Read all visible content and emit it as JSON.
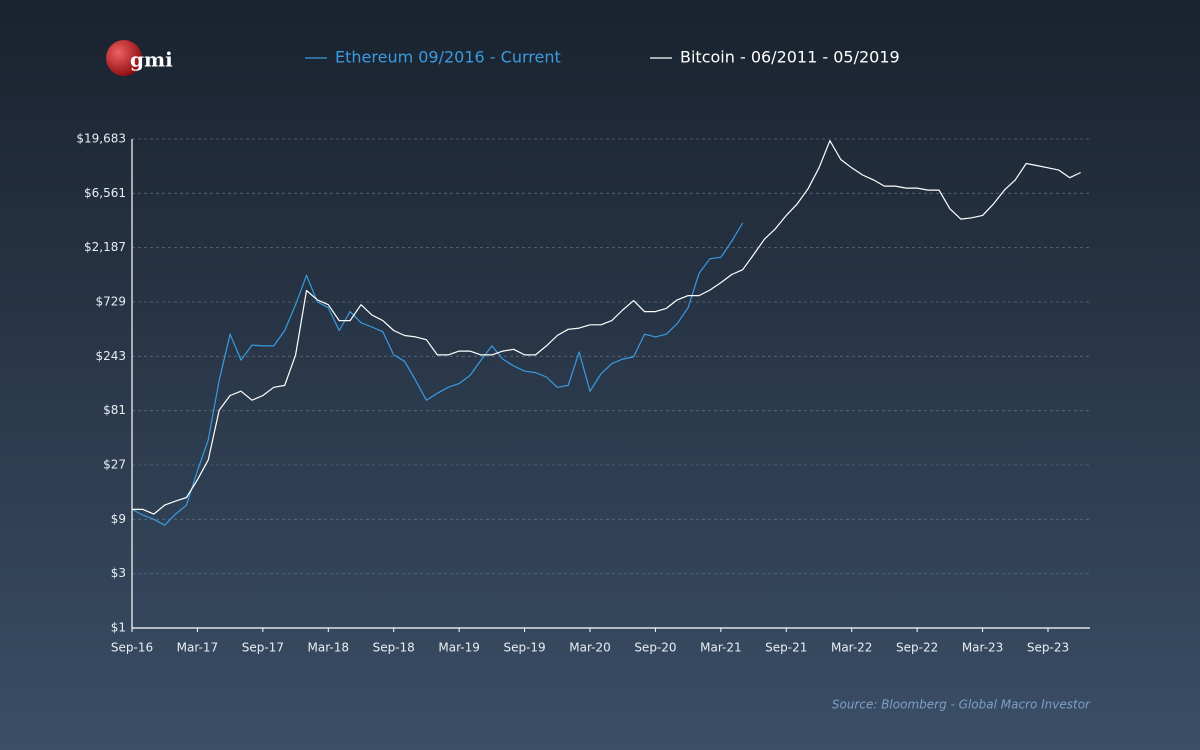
{
  "logo": "gmi",
  "chart_data": {
    "type": "line",
    "source": "Source: Bloomberg - Global Macro Investor",
    "x": [
      "Sep-16",
      "Oct-16",
      "Nov-16",
      "Dec-16",
      "Jan-17",
      "Feb-17",
      "Mar-17",
      "Apr-17",
      "May-17",
      "Jun-17",
      "Jul-17",
      "Aug-17",
      "Sep-17",
      "Oct-17",
      "Nov-17",
      "Dec-17",
      "Jan-18",
      "Feb-18",
      "Mar-18",
      "Apr-18",
      "May-18",
      "Jun-18",
      "Jul-18",
      "Aug-18",
      "Sep-18",
      "Oct-18",
      "Nov-18",
      "Dec-18",
      "Jan-19",
      "Feb-19",
      "Mar-19",
      "Apr-19",
      "May-19",
      "Jun-19",
      "Jul-19",
      "Aug-19",
      "Sep-19",
      "Oct-19",
      "Nov-19",
      "Dec-19",
      "Jan-20",
      "Feb-20",
      "Mar-20",
      "Apr-20",
      "May-20",
      "Jun-20",
      "Jul-20",
      "Aug-20",
      "Sep-20",
      "Oct-20",
      "Nov-20",
      "Dec-20",
      "Jan-21",
      "Feb-21",
      "Mar-21",
      "Apr-21",
      "May-21",
      "Jun-21",
      "Jul-21",
      "Aug-21",
      "Sep-21",
      "Oct-21",
      "Nov-21",
      "Dec-21",
      "Jan-22",
      "Feb-22",
      "Mar-22",
      "Apr-22",
      "May-22",
      "Jun-22",
      "Jul-22",
      "Aug-22",
      "Sep-22",
      "Oct-22",
      "Nov-22",
      "Dec-22",
      "Jan-23",
      "Feb-23",
      "Mar-23",
      "Apr-23",
      "May-23",
      "Jun-23",
      "Jul-23",
      "Aug-23",
      "Sep-23",
      "Oct-23",
      "Nov-23",
      "Dec-23"
    ],
    "xticks": [
      "Sep-16",
      "Mar-17",
      "Sep-17",
      "Mar-18",
      "Sep-18",
      "Mar-19",
      "Sep-19",
      "Mar-20",
      "Sep-20",
      "Mar-21",
      "Sep-21",
      "Mar-22",
      "Sep-22",
      "Mar-23",
      "Sep-23"
    ],
    "series": [
      {
        "name": "Ethereum 09/2016 - Current",
        "color": "#3a9be0",
        "values": [
          11,
          9.8,
          9,
          8,
          10,
          12,
          24,
          45,
          150,
          380,
          225,
          305,
          300,
          300,
          410,
          690,
          1250,
          730,
          650,
          410,
          600,
          480,
          440,
          400,
          250,
          220,
          150,
          100,
          115,
          130,
          140,
          165,
          225,
          300,
          230,
          200,
          180,
          175,
          160,
          130,
          135,
          265,
          120,
          170,
          210,
          230,
          240,
          380,
          360,
          380,
          470,
          650,
          1300,
          1750,
          1800,
          2500,
          3600,
          null,
          null,
          null,
          null,
          null,
          null,
          null,
          null,
          null,
          null,
          null,
          null,
          null,
          null,
          null,
          null,
          null,
          null,
          null,
          null,
          null,
          null,
          null,
          null,
          null,
          null,
          null,
          null,
          null,
          null,
          null
        ]
      },
      {
        "name": "Bitcoin - 06/2011 - 05/2019",
        "color": "#ffffff",
        "values": [
          11,
          11,
          10,
          12,
          13,
          14,
          20,
          30,
          82,
          110,
          120,
          100,
          110,
          130,
          135,
          250,
          920,
          760,
          690,
          500,
          500,
          690,
          560,
          500,
          410,
          370,
          360,
          340,
          250,
          250,
          270,
          270,
          250,
          250,
          270,
          280,
          250,
          250,
          300,
          370,
          420,
          430,
          460,
          460,
          500,
          620,
          750,
          600,
          600,
          640,
          760,
          830,
          830,
          930,
          1080,
          1270,
          1400,
          1900,
          2600,
          3200,
          4200,
          5300,
          7200,
          11000,
          19000,
          13000,
          11000,
          9500,
          8600,
          7600,
          7600,
          7300,
          7300,
          7000,
          7000,
          4800,
          3900,
          4000,
          4200,
          5300,
          7000,
          8600,
          12000,
          11500,
          11000,
          10500,
          9000,
          10000
        ]
      }
    ],
    "ylog": true,
    "ylim": [
      1,
      19683
    ],
    "yticks": [
      {
        "value": 1,
        "label": "$1"
      },
      {
        "value": 3,
        "label": "$3"
      },
      {
        "value": 9,
        "label": "$9"
      },
      {
        "value": 27,
        "label": "$27"
      },
      {
        "value": 81,
        "label": "$81"
      },
      {
        "value": 243,
        "label": "$243"
      },
      {
        "value": 729,
        "label": "$729"
      },
      {
        "value": 2187,
        "label": "$2,187"
      },
      {
        "value": 6561,
        "label": "$6,561"
      },
      {
        "value": 19683,
        "label": "$19,683"
      }
    ],
    "grid": true
  }
}
